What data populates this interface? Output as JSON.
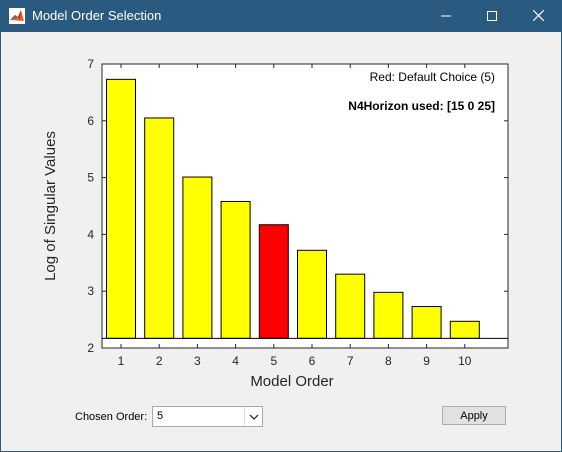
{
  "window": {
    "title": "Model Order Selection",
    "titlebar_color": "#2b5a80",
    "icon": "matlab-logo-icon"
  },
  "chart_data": {
    "type": "bar",
    "categories": [
      "1",
      "2",
      "3",
      "4",
      "5",
      "6",
      "7",
      "8",
      "9",
      "10"
    ],
    "values": [
      6.73,
      6.05,
      5.01,
      4.58,
      4.17,
      3.72,
      3.3,
      2.98,
      2.73,
      2.47
    ],
    "baseline": 2.17,
    "highlight_index": 4,
    "colors": {
      "default": "#ffff00",
      "highlight": "#ff0000",
      "edge": "#000000"
    },
    "xlabel": "Model Order",
    "ylabel": "Log of Singular Values",
    "ylim": [
      2,
      7
    ],
    "yticks": [
      "2",
      "3",
      "4",
      "5",
      "6",
      "7"
    ],
    "grid": false,
    "annotations": {
      "default_choice": "Red: Default Choice (5)",
      "horizon": "N4Horizon used:  [15 0 25]"
    }
  },
  "controls": {
    "chosen_order_label": "Chosen Order:",
    "chosen_order_value": "5",
    "apply_label": "Apply"
  }
}
